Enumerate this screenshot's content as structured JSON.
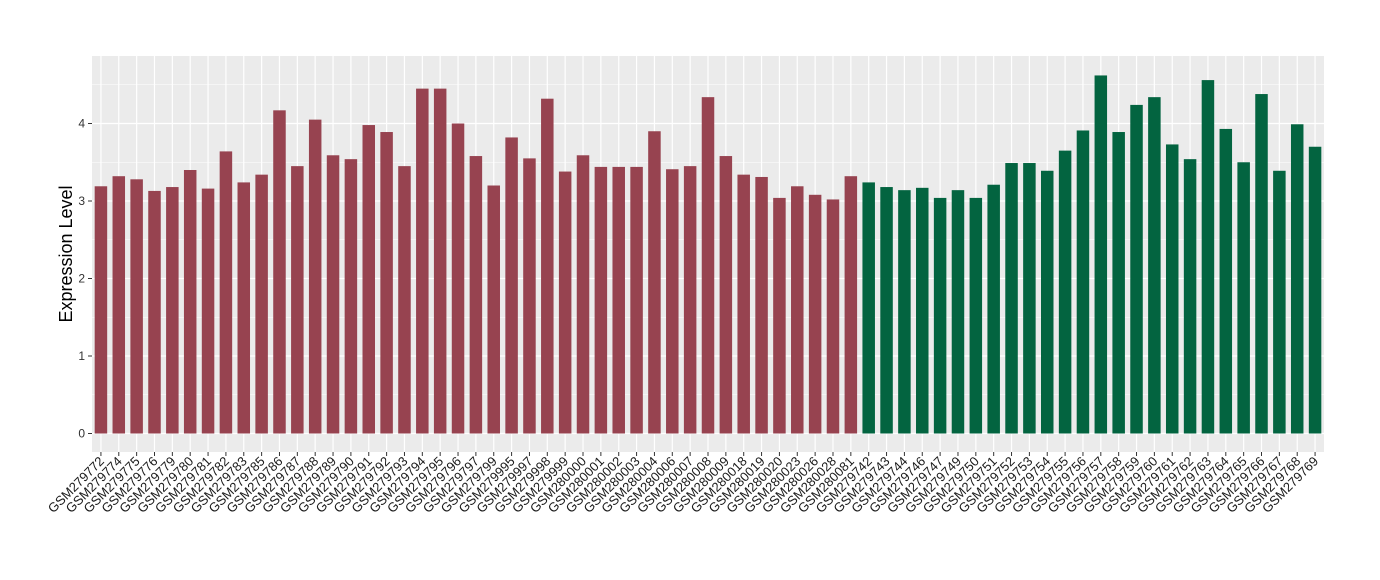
{
  "chart_data": {
    "type": "bar",
    "title": "",
    "xlabel": "",
    "ylabel": "Expression Level",
    "ylim": [
      0,
      4.75
    ],
    "yticks": [
      0,
      1,
      2,
      3,
      4
    ],
    "grid": true,
    "legend": "none",
    "colors": {
      "group1": "#974350",
      "group2": "#036440",
      "panel": "#ebebeb",
      "grid": "#ffffff"
    },
    "categories": [
      "GSM279772",
      "GSM279774",
      "GSM279775",
      "GSM279776",
      "GSM279779",
      "GSM279780",
      "GSM279781",
      "GSM279782",
      "GSM279783",
      "GSM279785",
      "GSM279786",
      "GSM279787",
      "GSM279788",
      "GSM279789",
      "GSM279790",
      "GSM279791",
      "GSM279792",
      "GSM279793",
      "GSM279794",
      "GSM279795",
      "GSM279796",
      "GSM279797",
      "GSM279799",
      "GSM279995",
      "GSM279997",
      "GSM279998",
      "GSM279999",
      "GSM280000",
      "GSM280001",
      "GSM280002",
      "GSM280003",
      "GSM280004",
      "GSM280006",
      "GSM280007",
      "GSM280008",
      "GSM280009",
      "GSM280018",
      "GSM280019",
      "GSM280020",
      "GSM280023",
      "GSM280026",
      "GSM280028",
      "GSM280081",
      "GSM279742",
      "GSM279743",
      "GSM279744",
      "GSM279746",
      "GSM279747",
      "GSM279749",
      "GSM279750",
      "GSM279751",
      "GSM279752",
      "GSM279753",
      "GSM279754",
      "GSM279755",
      "GSM279756",
      "GSM279757",
      "GSM279758",
      "GSM279759",
      "GSM279760",
      "GSM279761",
      "GSM279762",
      "GSM279763",
      "GSM279764",
      "GSM279765",
      "GSM279766",
      "GSM279767",
      "GSM279768",
      "GSM279769"
    ],
    "values": [
      3.19,
      3.32,
      3.28,
      3.13,
      3.18,
      3.4,
      3.16,
      3.64,
      3.24,
      3.34,
      4.17,
      3.45,
      4.05,
      3.59,
      3.54,
      3.98,
      3.89,
      3.45,
      4.45,
      4.45,
      4.0,
      3.58,
      3.2,
      3.82,
      3.55,
      4.32,
      3.38,
      3.59,
      3.44,
      3.44,
      3.44,
      3.9,
      3.41,
      3.45,
      4.34,
      3.58,
      3.34,
      3.31,
      3.04,
      3.19,
      3.08,
      3.02,
      3.32,
      3.24,
      3.18,
      3.14,
      3.17,
      3.04,
      3.14,
      3.04,
      3.21,
      3.49,
      3.49,
      3.39,
      3.65,
      3.91,
      4.62,
      3.89,
      4.24,
      4.34,
      3.73,
      3.54,
      4.56,
      3.93,
      3.5,
      4.38,
      3.39,
      3.99,
      3.7
    ],
    "group_split_index": 43
  }
}
